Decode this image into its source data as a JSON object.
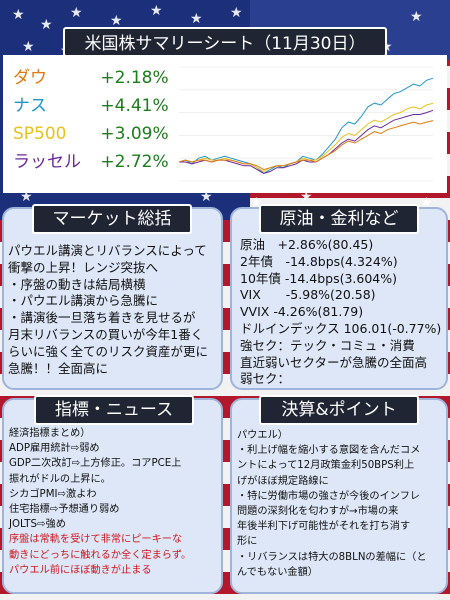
{
  "title": "米国株サマリーシート（11月30日）",
  "indices": [
    {
      "name": "ダウ",
      "change": "+2.18%",
      "color": "#e07a10"
    },
    {
      "name": "ナス",
      "change": "+4.41%",
      "color": "#2196c9"
    },
    {
      "name": "SP500",
      "change": "+3.09%",
      "color": "#e8c21a"
    },
    {
      "name": "ラッセル",
      "change": "+2.72%",
      "color": "#6a2a9a"
    }
  ],
  "chart_data": {
    "type": "line",
    "x": [
      0,
      1,
      2,
      3,
      4,
      5,
      6,
      7,
      8,
      9,
      10,
      11,
      12,
      13,
      14,
      15,
      16,
      17,
      18,
      19,
      20,
      21,
      22,
      23,
      24,
      25,
      26,
      27,
      28,
      29,
      30,
      31,
      32,
      33,
      34,
      35,
      36,
      37,
      38,
      39
    ],
    "series": [
      {
        "color": "#2196c9",
        "values": [
          0,
          0.1,
          -0.1,
          0.2,
          0.3,
          0.1,
          0.2,
          0.3,
          0.2,
          0.1,
          0.0,
          -0.1,
          -0.3,
          -0.6,
          -0.4,
          -0.2,
          -0.3,
          -0.1,
          0.0,
          0.3,
          0.2,
          0.1,
          0.4,
          0.8,
          1.2,
          1.8,
          2.1,
          2.0,
          2.4,
          2.9,
          3.1,
          3.0,
          3.3,
          3.6,
          3.7,
          3.9,
          4.1,
          4.0,
          4.3,
          4.41
        ]
      },
      {
        "color": "#e8c21a",
        "values": [
          0,
          0.1,
          0.0,
          0.1,
          0.2,
          0.1,
          0.1,
          0.2,
          0.1,
          0.0,
          -0.1,
          -0.1,
          -0.3,
          -0.5,
          -0.3,
          -0.2,
          -0.2,
          -0.1,
          0.0,
          0.2,
          0.1,
          0.1,
          0.3,
          0.6,
          0.9,
          1.3,
          1.5,
          1.4,
          1.7,
          2.0,
          2.2,
          2.1,
          2.3,
          2.5,
          2.6,
          2.8,
          2.9,
          2.8,
          3.0,
          3.09
        ]
      },
      {
        "color": "#6a2a9a",
        "values": [
          0,
          0.0,
          -0.1,
          0.0,
          0.1,
          0.0,
          0.1,
          0.1,
          0.0,
          -0.1,
          -0.2,
          -0.2,
          -0.4,
          -0.6,
          -0.5,
          -0.3,
          -0.3,
          -0.2,
          -0.1,
          0.1,
          0.0,
          0.0,
          0.2,
          0.4,
          0.7,
          1.0,
          1.2,
          1.1,
          1.4,
          1.7,
          1.9,
          1.8,
          2.0,
          2.2,
          2.3,
          2.4,
          2.5,
          2.5,
          2.6,
          2.72
        ]
      },
      {
        "color": "#e07a10",
        "values": [
          0,
          0.1,
          0.0,
          0.1,
          0.1,
          0.0,
          0.1,
          0.1,
          0.1,
          0.0,
          -0.1,
          -0.1,
          -0.2,
          -0.4,
          -0.3,
          -0.2,
          -0.2,
          -0.1,
          0.0,
          0.1,
          0.1,
          0.0,
          0.2,
          0.4,
          0.6,
          0.9,
          1.1,
          1.0,
          1.2,
          1.4,
          1.6,
          1.5,
          1.7,
          1.8,
          1.9,
          2.0,
          2.1,
          2.0,
          2.1,
          2.18
        ]
      }
    ],
    "ylim": [
      -1,
      5
    ]
  },
  "market": {
    "heading": "マーケット総括",
    "lines": [
      "パウエル講演とリバランスによって",
      "衝撃の上昇！レンジ突抜へ",
      "・序盤の動きは結局横横",
      "・パウエル講演から急騰に",
      "・講演後一旦落ち着きを見せるが",
      "月末リバランスの買いが今年1番く",
      "らいに強く全てのリスク資産が更に",
      "急騰！！全面高に"
    ]
  },
  "rates": {
    "heading": "原油・金利など",
    "lines": [
      "原油　+2.86%(80.45)",
      "2年債　-14.8bps(4.324%)",
      "10年債 -14.4bps(3.604%)",
      "VIX　　-5.98%(20.58)",
      "VVIX -4.26%(81.79)",
      "ドルインデックス 106.01(-0.77%)",
      "強セク：テック・コミュ・消費",
      "直近弱いセクターが急騰の全面高",
      "弱セク："
    ]
  },
  "news": {
    "heading": "指標・ニュース",
    "lines": [
      "経済指標まとめ）",
      "ADP雇用統計⇨弱め",
      "GDP二次改訂⇨上方修正。コアPCE上",
      "振れがドルの上昇に。",
      "シカゴPMI⇨激よわ",
      "住宅指標⇨予想通り弱め",
      "JOLTS⇨強め"
    ],
    "red_lines": [
      "序盤は常軌を受けて非常にピーキーな",
      "動きにどっちに触れるか全く定まらず。",
      "パウエル前にほぼ動きが止まる"
    ]
  },
  "earnings": {
    "heading": "決算&ポイント",
    "lines": [
      "パウエル）",
      "・利上げ幅を縮小する意図を含んだコメ",
      "ントによって12月政策金利50BPS利上",
      "げがほぼ規定路線に",
      "・特に労働市場の強さが今後のインフレ",
      "問題の深刻化を匂わすが→市場の来",
      "年後半利下げ可能性がそれを打ち消す",
      "形に",
      "・リバランスは特大の8BLNの差幅に（と",
      "んでもない金額）"
    ]
  }
}
